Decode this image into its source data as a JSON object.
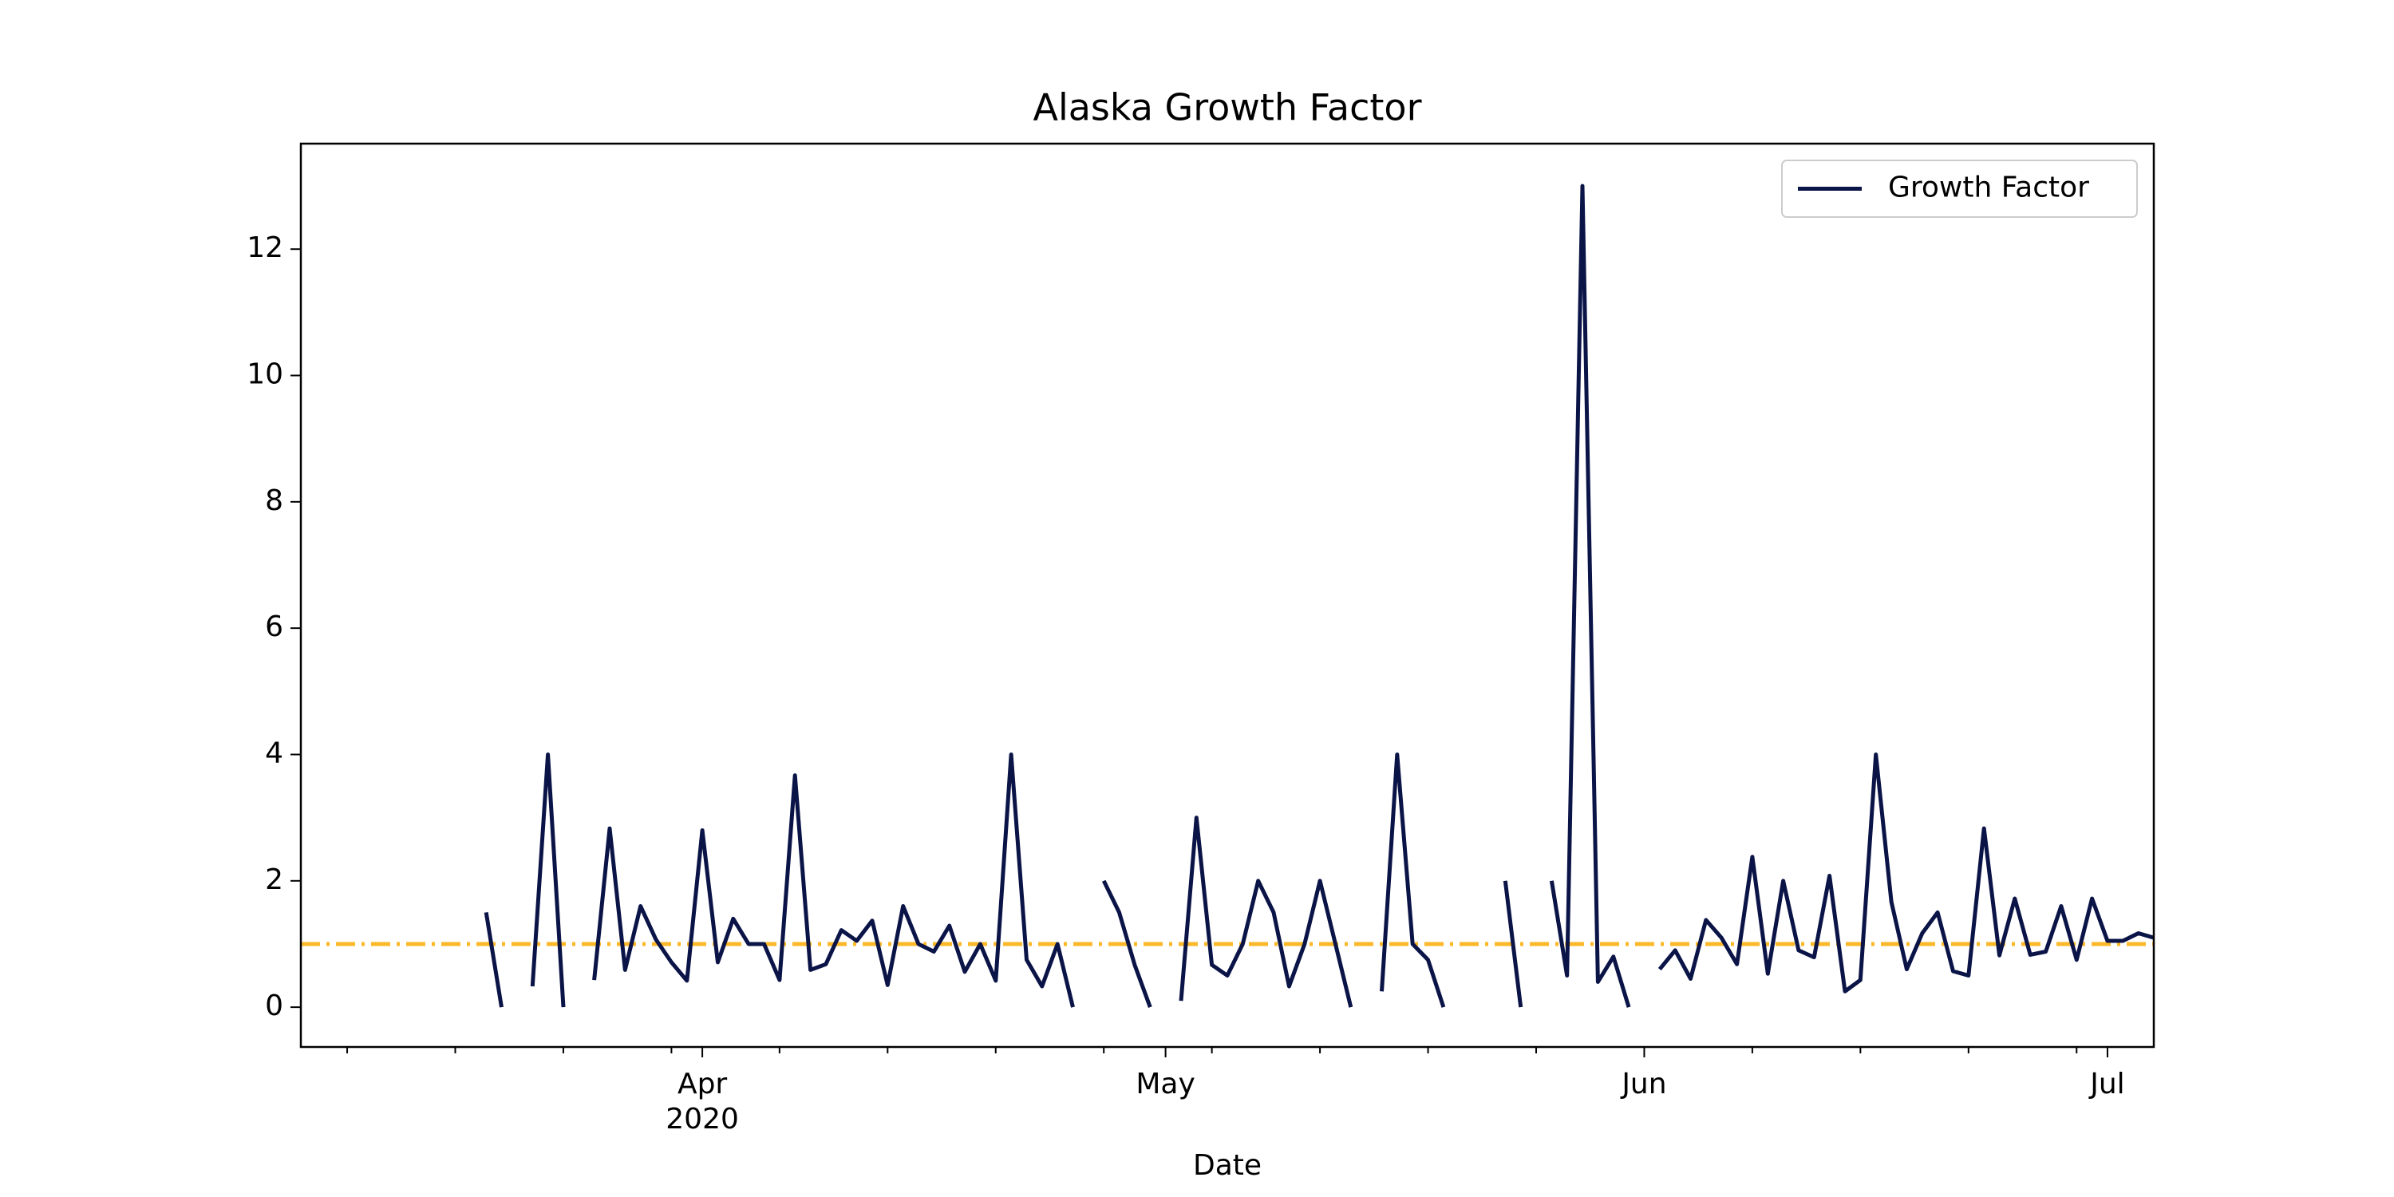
{
  "chart_data": {
    "type": "line",
    "title": "Alaska Growth Factor",
    "x_label": "Date",
    "categories": [
      null,
      null,
      null,
      null,
      null,
      null,
      null,
      null,
      null,
      null,
      null,
      null,
      null,
      null,
      null,
      null,
      null,
      null,
      null,
      null,
      null,
      null,
      null,
      null,
      null,
      null,
      "Apr",
      null,
      null,
      null,
      null,
      null,
      null,
      null,
      null,
      null,
      null,
      null,
      null,
      null,
      null,
      null,
      null,
      null,
      null,
      null,
      null,
      null,
      null,
      null,
      null,
      null,
      null,
      null,
      null,
      null,
      "May",
      null,
      null,
      null,
      null,
      null,
      null,
      null,
      null,
      null,
      null,
      null,
      null,
      null,
      null,
      null,
      null,
      null,
      null,
      null,
      null,
      null,
      null,
      null,
      null,
      null,
      null,
      null,
      null,
      null,
      null,
      "Jun",
      null,
      null,
      null,
      null,
      null,
      null,
      null,
      null,
      null,
      null,
      null,
      null,
      null,
      null,
      null,
      null,
      null,
      null,
      null,
      null,
      null,
      null,
      null,
      null,
      null,
      null,
      null,
      null,
      null,
      "Jul",
      null,
      null,
      null
    ],
    "x_year_label": "2020",
    "series": [
      {
        "name": "Growth Factor",
        "color": "#0b1447",
        "values": [
          null,
          null,
          null,
          null,
          null,
          null,
          null,
          null,
          null,
          null,
          null,
          null,
          1.5,
          0,
          null,
          0.33,
          4,
          0,
          null,
          0.43,
          2.83,
          0.59,
          1.6,
          1.07,
          0.71,
          0.42,
          2.8,
          0.71,
          1.4,
          1.0,
          1.0,
          0.43,
          3.67,
          0.59,
          0.68,
          1.22,
          1.05,
          1.37,
          0.35,
          1.6,
          1.0,
          0.88,
          1.29,
          0.56,
          1.0,
          0.42,
          4.0,
          0.75,
          0.33,
          1.0,
          0,
          null,
          2.0,
          1.5,
          0.67,
          0,
          null,
          0.1,
          3.0,
          0.67,
          0.5,
          1.0,
          2.0,
          1.5,
          0.33,
          1.0,
          2.0,
          1.0,
          0,
          null,
          0.25,
          4.0,
          1.0,
          0.75,
          0,
          null,
          null,
          null,
          2.0,
          0,
          null,
          2.0,
          0.5,
          13,
          0.4,
          0.8,
          0,
          null,
          0.6,
          0.9,
          0.45,
          1.38,
          1.1,
          0.68,
          2.38,
          0.53,
          2.0,
          0.9,
          0.79,
          2.08,
          0.25,
          0.43,
          4.0,
          1.67,
          0.6,
          1.17,
          1.5,
          0.57,
          0.5,
          2.83,
          0.82,
          1.72,
          0.83,
          0.88,
          1.6,
          0.75,
          1.72,
          1.05,
          1.05,
          1.17,
          1.1
        ]
      }
    ],
    "reference_line": {
      "value": 1,
      "color": "#fbb829"
    },
    "ylim": [
      -0.63,
      13.67
    ],
    "yticks": [
      0,
      2,
      4,
      6,
      8,
      10,
      12
    ],
    "legend": "upper right"
  }
}
